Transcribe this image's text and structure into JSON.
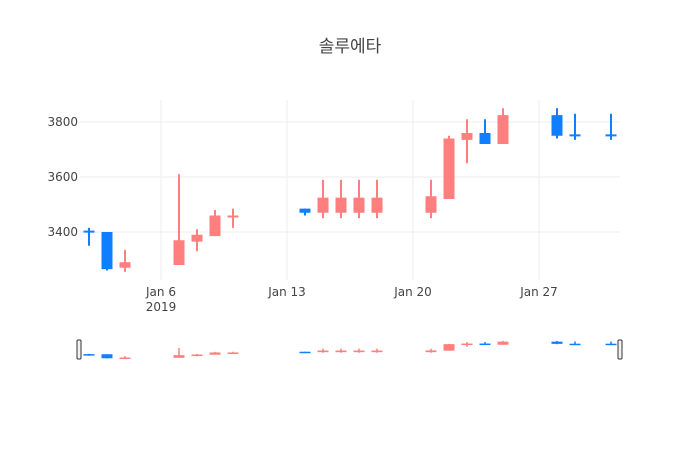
{
  "chart_data": {
    "type": "candlestick",
    "title": "솔루에타",
    "xlabel": "",
    "ylabel": "",
    "ylim": [
      3240,
      3880
    ],
    "y_ticks": [
      3400,
      3600,
      3800
    ],
    "x_ticks": [
      {
        "date": "2019-01-06",
        "label": "Jan 6",
        "sublabel": "2019"
      },
      {
        "date": "2019-01-13",
        "label": "Jan 13",
        "sublabel": ""
      },
      {
        "date": "2019-01-20",
        "label": "Jan 20",
        "sublabel": ""
      },
      {
        "date": "2019-01-27",
        "label": "Jan 27",
        "sublabel": ""
      }
    ],
    "increasing_color": "#ff7f7f",
    "decreasing_color": "#0f7fff",
    "grid": true,
    "rangeslider": true,
    "x": [
      "2019-01-02",
      "2019-01-03",
      "2019-01-04",
      "2019-01-07",
      "2019-01-08",
      "2019-01-09",
      "2019-01-10",
      "2019-01-14",
      "2019-01-15",
      "2019-01-16",
      "2019-01-17",
      "2019-01-18",
      "2019-01-21",
      "2019-01-22",
      "2019-01-23",
      "2019-01-24",
      "2019-01-25",
      "2019-01-28",
      "2019-01-29",
      "2019-01-31"
    ],
    "open": [
      3405,
      3400,
      3270,
      3280,
      3365,
      3385,
      3455,
      3485,
      3470,
      3470,
      3470,
      3470,
      3470,
      3520,
      3735,
      3760,
      3720,
      3825,
      3755,
      3755
    ],
    "high": [
      3415,
      3400,
      3335,
      3610,
      3410,
      3480,
      3485,
      3485,
      3590,
      3590,
      3590,
      3590,
      3590,
      3750,
      3810,
      3810,
      3850,
      3850,
      3830,
      3830
    ],
    "low": [
      3350,
      3260,
      3255,
      3280,
      3330,
      3385,
      3415,
      3460,
      3450,
      3450,
      3450,
      3450,
      3450,
      3520,
      3650,
      3720,
      3720,
      3740,
      3735,
      3735
    ],
    "close": [
      3400,
      3265,
      3290,
      3370,
      3390,
      3460,
      3460,
      3470,
      3525,
      3525,
      3525,
      3525,
      3530,
      3740,
      3760,
      3720,
      3825,
      3750,
      3750,
      3750
    ]
  }
}
